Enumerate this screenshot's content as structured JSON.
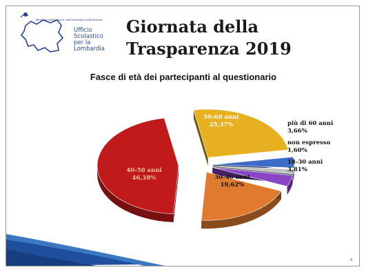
{
  "header": {
    "ministry": "Ministero dell'Istruzione, dell'Università e della Ricerca",
    "office_lines": [
      "Ufficio",
      "Scolastico",
      "per la",
      "Lombardia"
    ],
    "title_lines": [
      "Giornata della",
      "Trasparenza 2019"
    ]
  },
  "chart_data": {
    "type": "pie",
    "title": "Fasce di età dei partecipanti al questionario",
    "slices": [
      {
        "label": "40-50 anni",
        "value": 46.38,
        "value_label": "46,38%",
        "color": "#c01a1a"
      },
      {
        "label": "50-60 anni",
        "value": 25.37,
        "value_label": "25,37%",
        "color": "#e6b020"
      },
      {
        "label": "più di 60 anni",
        "value": 3.66,
        "value_label": "3,66%",
        "color": "#3b6cc7"
      },
      {
        "label": "non espresso",
        "value": 1.6,
        "value_label": "1,60%",
        "color": "#bfbfbf"
      },
      {
        "label": "18-30 anni",
        "value": 3.81,
        "value_label": "3,81%",
        "color": "#8a45c4"
      },
      {
        "label": "30-40 anni",
        "value": 19.62,
        "value_label": "19,62%",
        "color": "#e07a2e"
      }
    ]
  },
  "footer": {
    "page": "4"
  }
}
